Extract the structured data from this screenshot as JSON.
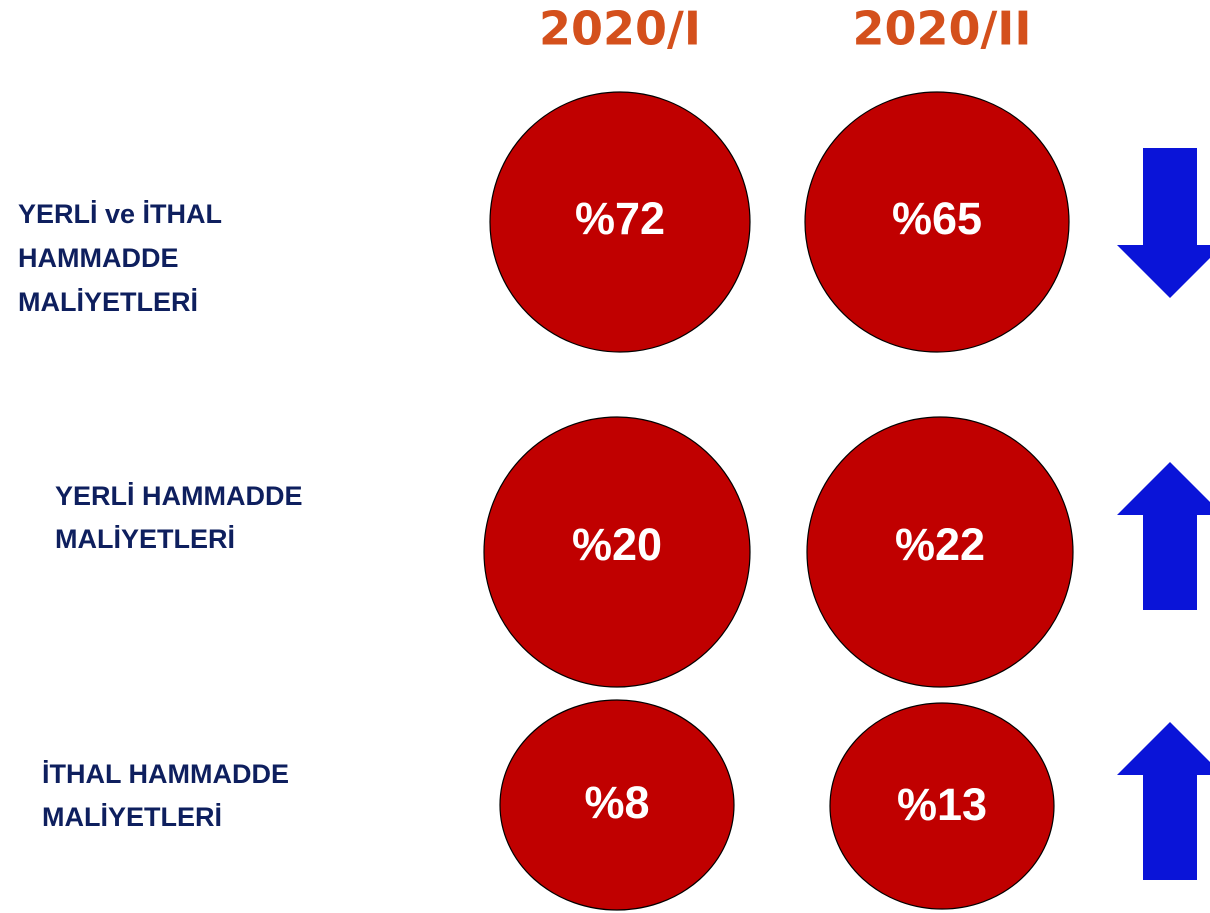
{
  "header": {
    "columns": [
      "2020/I",
      "2020/II"
    ]
  },
  "rows": [
    {
      "label": [
        "YERLİ ve İTHAL",
        "HAMMADDE",
        "MALİYETLERİ"
      ],
      "values": [
        "%72",
        "%65"
      ]
    },
    {
      "label": [
        "YERLİ HAMMADDE",
        "MALİYETLERİ"
      ],
      "values": [
        "%20",
        "%22"
      ]
    },
    {
      "label": [
        "İTHAL HAMMADDE",
        "MALİYETLERİ"
      ],
      "values": [
        "%8",
        "%13"
      ]
    }
  ]
}
